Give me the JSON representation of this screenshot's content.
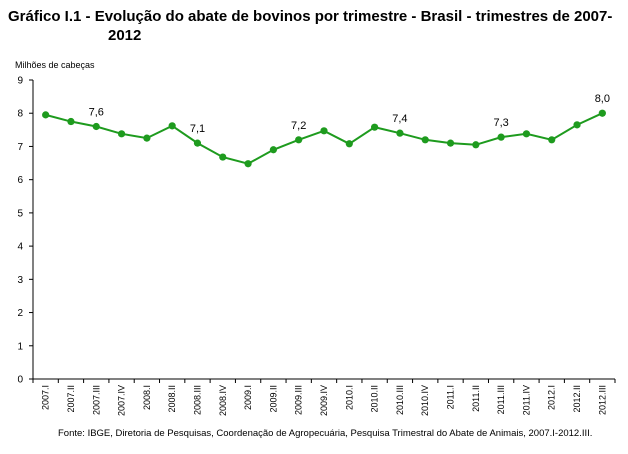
{
  "title": {
    "line1": "Gráfico I.1 - Evolução do abate de bovinos por trimestre - Brasil - trimestres de 2007-",
    "line2": "2012"
  },
  "source": "Fonte: IBGE, Diretoria de Pesquisas, Coordenação de Agropecuária, Pesquisa Trimestral do Abate de Animais, 2007.I-2012.III.",
  "chart_data": {
    "type": "line",
    "title": "Gráfico I.1 - Evolução do abate de bovinos por trimestre - Brasil - trimestres de 2007-2012",
    "ylabel": "Milhões de cabeças",
    "xlabel": "",
    "ylim": [
      0,
      9
    ],
    "yticks": [
      "0",
      "1",
      "2",
      "3",
      "4",
      "5",
      "6",
      "7",
      "8",
      "9"
    ],
    "grid": false,
    "legend": "none",
    "color": "#1e9b1e",
    "categories": [
      "2007.I",
      "2007.II",
      "2007.III",
      "2007.IV",
      "2008.I",
      "2008.II",
      "2008.III",
      "2008.IV",
      "2009.I",
      "2009.II",
      "2009.III",
      "2009.IV",
      "2010.I",
      "2010.II",
      "2010.III",
      "2010.IV",
      "2011.I",
      "2011.II",
      "2011.III",
      "2011.IV",
      "2012.I",
      "2012.II",
      "2012.III"
    ],
    "values": [
      7.95,
      7.75,
      7.6,
      7.38,
      7.25,
      7.62,
      7.1,
      6.68,
      6.48,
      6.9,
      7.2,
      7.47,
      7.08,
      7.58,
      7.4,
      7.2,
      7.1,
      7.05,
      7.28,
      7.38,
      7.2,
      7.65,
      8.0
    ],
    "data_labels": [
      {
        "index": 2,
        "text": "7,6"
      },
      {
        "index": 6,
        "text": "7,1"
      },
      {
        "index": 10,
        "text": "7,2"
      },
      {
        "index": 14,
        "text": "7,4"
      },
      {
        "index": 18,
        "text": "7,3"
      },
      {
        "index": 22,
        "text": "8,0"
      }
    ]
  }
}
